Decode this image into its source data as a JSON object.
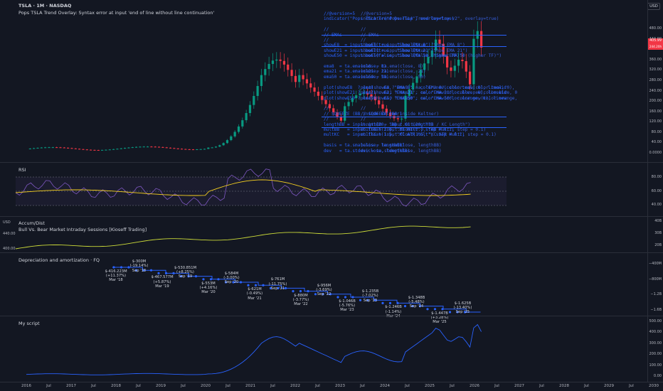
{
  "header": {
    "symbol": "TSLA · 1M · NASDAQ",
    "overlay": "Pops TSLA Trend Overlay: Syntax error at input 'end of line without line continuation'",
    "currency_button": "USD",
    "price_tag": "405.99",
    "price_tag2": "244.20h"
  },
  "main_axis": [
    "480.00",
    "440.00",
    "400.00",
    "360.00",
    "320.00",
    "280.00",
    "240.00",
    "200.00",
    "160.00",
    "120.00",
    "80.00",
    "40.00",
    "0.0000"
  ],
  "code_lines": [
    "//@version=5",
    "indicator(\"Pops TSLA Trend Overlay\", overlay=true)",
    "",
    "//",
    "// EMAs",
    "//",
    "showE8  = input.bool(true,  \"Show EMA 8\")",
    "showE21 = input.bool(true,  \"Show EMA 21\")",
    "showE50 = input.bool(false, \"Show EMA 50 (higher TF)\")",
    "",
    "ema8  = ta.ema(close, 8)",
    "ema21 = ta.ema(close, 21)",
    "ema50 = ta.ema(close, 50)",
    "",
    "plot(showE8  ? ema8  : na, \"EMA 8\",  color.new(color.teal, 0), linewidth=1)",
    "plot(showE21 ? ema21 : na, \"EMA 21\", color.new(color.blue, 0), linewidth=1)",
    "plot(showE50 ? ema50 : na, \"EMA 50\", color.new(color.orange, 0), linewidth=2)",
    "",
    "//",
    "// SQUEEZE (BB inside Keltner)",
    "//",
    "lengthBB = input.int(20, \"BB / KC Length\")",
    "multBB   = input.float(2.0, \"BB Mult\", step = 0.1)",
    "multKC   = input.float(1.5, \"KC ATR Mult\", step = 0.1)",
    "",
    "basis = ta.sma(close, lengthBB)",
    "dev   = ta.stdev(close, lengthBB)"
  ],
  "code_lines_ghost": [
    "//@version=5",
    "indicator(\"Pops TSLA Trend Overlay v2\", overlay=true)",
    "",
    "//",
    "// EMAs",
    "//",
    "showE8  = input.bool(true, \"Show EMA 8\")",
    "showE21 = input.bool(true, \"Show EMA 21\")",
    "showE50 = input.bool(false, \"Show EMA 50 (higher TF)\")",
    "",
    "ema8  = ta.ema(close, 8)",
    "ema21 = ta.ema(close, 21)",
    "ema50 = ta.ema(close, 50)",
    "",
    "plot(showE8 ? ema8 : na, \"EMA 8\", color.new(color.teal, 0), linewidth=1)",
    "plot(showE21 ? ema21 : na, \"EMA 21\", color.new(color.blue, 0), linewidth=1)",
    "plot(showE50 ? ema50 : na, \"EMA 50\", color.new(color.orange, 0), linewidth=2)",
    "",
    "//",
    "// SQUEEZE (BB inside Keltner)",
    "//",
    "lengthBB = input.int(20, \"BB / KC Length\")",
    "multBB = input.float(2.0, \"BB Mult\", step = 0.1)",
    "multKC = input.float(1.5, \"KC ATR Mult\", step = 0.1)",
    "",
    "basis = ta.sma(close, lengthBB)",
    "dev = ta.stdev(close, lengthBB)"
  ],
  "rsi": {
    "title": "RSI",
    "axis": [
      "80.00",
      "60.00",
      "40.00"
    ]
  },
  "accum": {
    "title": "Accum/Dist",
    "sub": "Bull Vs. Bear Market Intraday Sessions [Kioseff Trading]",
    "left_usd": "USD",
    "left_axis": [
      "440.00",
      "400.00"
    ],
    "axis": [
      "40B",
      "30B",
      "20B"
    ]
  },
  "dep": {
    "title": "Depreciation and amortization · FQ",
    "axis": [
      "−400M",
      "−800M",
      "−1.2B",
      "−1.6B"
    ],
    "labels": [
      {
        "text": "$-416.223M\n(+11.37%)\nMar '18"
      },
      {
        "text": "$-300M\n(-19.14%)\nSep '18"
      },
      {
        "text": "$-467.577M\n(+5.87%)\nMar '19"
      },
      {
        "text": "$-530.851M\n(+8.25%)\nSep '19"
      },
      {
        "text": "$-553M\n(+4.16%)\nMar '20"
      },
      {
        "text": "$-584M\n(-3.00%)\nSep '20"
      },
      {
        "text": "$-621M\n(-0.49%)\nMar '21"
      },
      {
        "text": "$-761M\n(-11.75%)\nSep '21"
      },
      {
        "text": "$-880M\n(-3.77%)\nMar '22"
      },
      {
        "text": "$-956M\n(-3.69%)\nSep '22"
      },
      {
        "text": "$-1.046B\n(-5.76%)\nMar '23"
      },
      {
        "text": "$-1.235B\n(-7.02%)\nSep '23"
      },
      {
        "text": "$-1.246B\n(-1.14%)\nMar '24"
      },
      {
        "text": "$-1.348B\n(-5.48%)\nSep '24"
      },
      {
        "text": "$-1.447B\n(+3.28%)\nMar '25"
      },
      {
        "text": "$-1.625B\n(-13.40%)\nSep '25"
      }
    ]
  },
  "script": {
    "title": "My script",
    "axis": [
      "500.00",
      "400.00",
      "300.00",
      "200.00",
      "100.00",
      "0.00"
    ]
  },
  "time_axis": [
    "2016",
    "Jul",
    "2017",
    "Jul",
    "2018",
    "Jul",
    "2019",
    "Jul",
    "2020",
    "Jul",
    "2021",
    "Jul",
    "2022",
    "Jul",
    "2023",
    "Jul",
    "2024",
    "Jul",
    "2025",
    "Jul",
    "2026",
    "Jul",
    "2027",
    "Jul",
    "2028",
    "Jul",
    "2029",
    "Jul",
    "2030",
    "Jul"
  ],
  "colors": {
    "up": "#089981",
    "down": "#f23645",
    "code": "#2962ff",
    "rsi_line": "#7e57c2",
    "rsi_ma": "#f7d11f",
    "accum": "#cddc39",
    "dep": "#2962ff",
    "script": "#2962ff"
  },
  "chart_data": {
    "type": "line",
    "x": [
      "2016",
      "2017",
      "2018",
      "2019",
      "2020",
      "2021",
      "2022",
      "2023",
      "2024",
      "2025"
    ],
    "series": []
  }
}
